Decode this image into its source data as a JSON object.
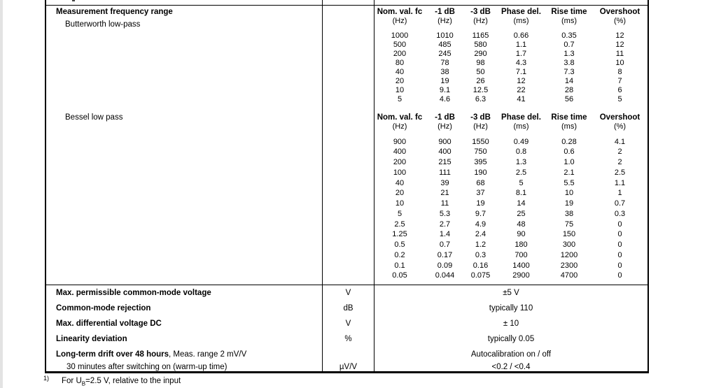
{
  "document": {
    "freq_section": {
      "title": "Measurement frequency range",
      "butterworth_label": "Butterworth low-pass",
      "bessel_label": "Bessel low pass"
    },
    "table_headers": [
      "Nom. val. fc",
      "-1 dB",
      "-3 dB",
      "Phase del.",
      "Rise time",
      "Overshoot"
    ],
    "table_units": [
      "(Hz)",
      "(Hz)",
      "(Hz)",
      "(ms)",
      "(ms)",
      "(%)"
    ],
    "butterworth_rows": [
      [
        "1000",
        "1010",
        "1165",
        "0.66",
        "0.35",
        "12"
      ],
      [
        "500",
        "485",
        "580",
        "1.1",
        "0.7",
        "12"
      ],
      [
        "200",
        "245",
        "290",
        "1.7",
        "1.3",
        "11"
      ],
      [
        "80",
        "78",
        "98",
        "4.3",
        "3.8",
        "10"
      ],
      [
        "40",
        "38",
        "50",
        "7.1",
        "7.3",
        "8"
      ],
      [
        "20",
        "19",
        "26",
        "12",
        "14",
        "7"
      ],
      [
        "10",
        "9.1",
        "12.5",
        "22",
        "28",
        "6"
      ],
      [
        "5",
        "4.6",
        "6.3",
        "41",
        "56",
        "5"
      ]
    ],
    "bessel_rows": [
      [
        "900",
        "900",
        "1550",
        "0.49",
        "0.28",
        "4.1"
      ],
      [
        "400",
        "400",
        "750",
        "0.8",
        "0.6",
        "2"
      ],
      [
        "200",
        "215",
        "395",
        "1.3",
        "1.0",
        "2"
      ],
      [
        "100",
        "111",
        "190",
        "2.5",
        "2.1",
        "2.5"
      ],
      [
        "40",
        "39",
        "68",
        "5",
        "5.5",
        "1.1"
      ],
      [
        "20",
        "21",
        "37",
        "8.1",
        "10",
        "1"
      ],
      [
        "10",
        "11",
        "19",
        "14",
        "19",
        "0.7"
      ],
      [
        "5",
        "5.3",
        "9.7",
        "25",
        "38",
        "0.3"
      ],
      [
        "2.5",
        "2.7",
        "4.9",
        "48",
        "75",
        "0"
      ],
      [
        "1.25",
        "1.4",
        "2.4",
        "90",
        "150",
        "0"
      ],
      [
        "0.5",
        "0.7",
        "1.2",
        "180",
        "300",
        "0"
      ],
      [
        "0.2",
        "0.17",
        "0.3",
        "700",
        "1200",
        "0"
      ],
      [
        "0.1",
        "0.09",
        "0.16",
        "1400",
        "2300",
        "0"
      ],
      [
        "0.05",
        "0.044",
        "0.075",
        "2900",
        "4700",
        "0"
      ]
    ],
    "spec_rows": [
      {
        "label": "Max. permissible common-mode voltage",
        "label_suffix": "",
        "bold": true,
        "indent": false,
        "unit": "V",
        "value": "±5 V"
      },
      {
        "label": "Common-mode rejection",
        "label_suffix": "",
        "bold": true,
        "indent": false,
        "unit": "dB",
        "value": "typically 110"
      },
      {
        "label": "Max. differential voltage DC",
        "label_suffix": "",
        "bold": true,
        "indent": false,
        "unit": "V",
        "value": "± 10"
      },
      {
        "label": "Linearity deviation",
        "label_suffix": "",
        "bold": true,
        "indent": false,
        "unit": "%",
        "value": "typically 0.05"
      },
      {
        "label": "Long-term drift over 48 hours",
        "label_suffix": ", Meas. range 2 mV/V",
        "bold": true,
        "indent": false,
        "unit": "",
        "value": "Autocalibration on / off"
      },
      {
        "label": "30 minutes after switching on (warm-up time)",
        "label_suffix": "",
        "bold": false,
        "indent": true,
        "unit": "µV/V",
        "value": "<0.2 / <0.4"
      }
    ],
    "footnote": {
      "marker": "1)",
      "text_prefix": "For U",
      "text_sub": "B",
      "text_suffix": "=2.5 V, relative to the input"
    }
  }
}
